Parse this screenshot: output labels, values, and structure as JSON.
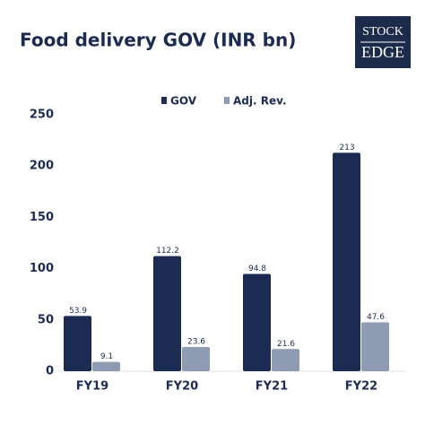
{
  "logo": {
    "line1": "STOCK",
    "line2": "EDGE"
  },
  "chart_data": {
    "type": "bar",
    "title": "Food delivery GOV (INR bn)",
    "categories": [
      "FY19",
      "FY20",
      "FY21",
      "FY22"
    ],
    "series": [
      {
        "name": "GOV",
        "color": "#1c2b52",
        "values": [
          53.9,
          112.2,
          94.8,
          213
        ]
      },
      {
        "name": "Adj. Rev.",
        "color": "#8e9bb3",
        "values": [
          9.1,
          23.6,
          21.6,
          47.6
        ]
      }
    ],
    "ylim": [
      0,
      250
    ],
    "yticks": [
      0,
      50,
      100,
      150,
      200,
      250
    ],
    "grid": false,
    "legend": "top"
  }
}
